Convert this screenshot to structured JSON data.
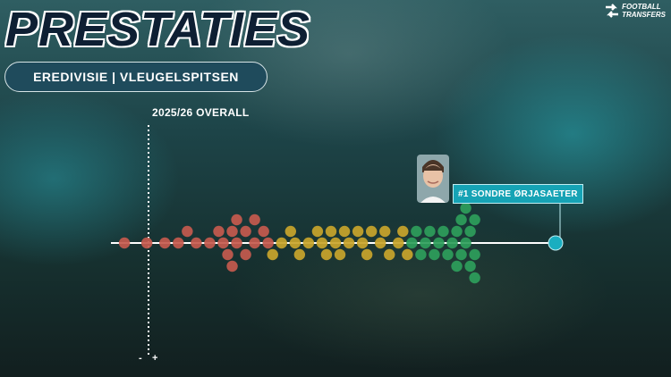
{
  "header": {
    "title": "PRESTATIES",
    "subtitle": "EREDIVISIE | VLEUGELSPITSEN",
    "season_label": "2025/26 OVERALL"
  },
  "brand": {
    "line1": "FOOTBALL",
    "line2": "TRANSFERS"
  },
  "axis": {
    "minus_label": "-",
    "plus_label": "+"
  },
  "highlight": {
    "label": "#1 SONDRE ØRJASAETER"
  },
  "colors": {
    "low": "#c65a4e",
    "mid": "#c9a52b",
    "high": "#2e9e5b",
    "highlight": "#1aaec0",
    "baseline": "#ffffff"
  },
  "chart_data": {
    "type": "scatter",
    "title": "",
    "xlabel": "",
    "ylabel": "",
    "xlim": [
      0,
      100
    ],
    "series": [
      {
        "group": "low",
        "values": [
          3,
          8,
          12,
          15,
          17,
          19,
          22,
          24,
          25,
          26,
          27,
          27,
          28,
          28,
          30,
          30,
          32,
          32,
          34,
          35
        ]
      },
      {
        "group": "mid",
        "values": [
          36,
          38,
          40,
          41,
          42,
          44,
          46,
          47,
          48,
          49,
          50,
          51,
          52,
          53,
          55,
          56,
          57,
          58,
          60,
          61,
          62,
          64,
          65,
          66
        ]
      },
      {
        "group": "high",
        "values": [
          67,
          68,
          69,
          70,
          71,
          72,
          73,
          74,
          75,
          76,
          77,
          77,
          78,
          78,
          79,
          79,
          80,
          80,
          81,
          81,
          81
        ]
      },
      {
        "group": "highlight",
        "name": "#1 SONDRE ØRJASAETER",
        "values": [
          99
        ]
      }
    ]
  }
}
